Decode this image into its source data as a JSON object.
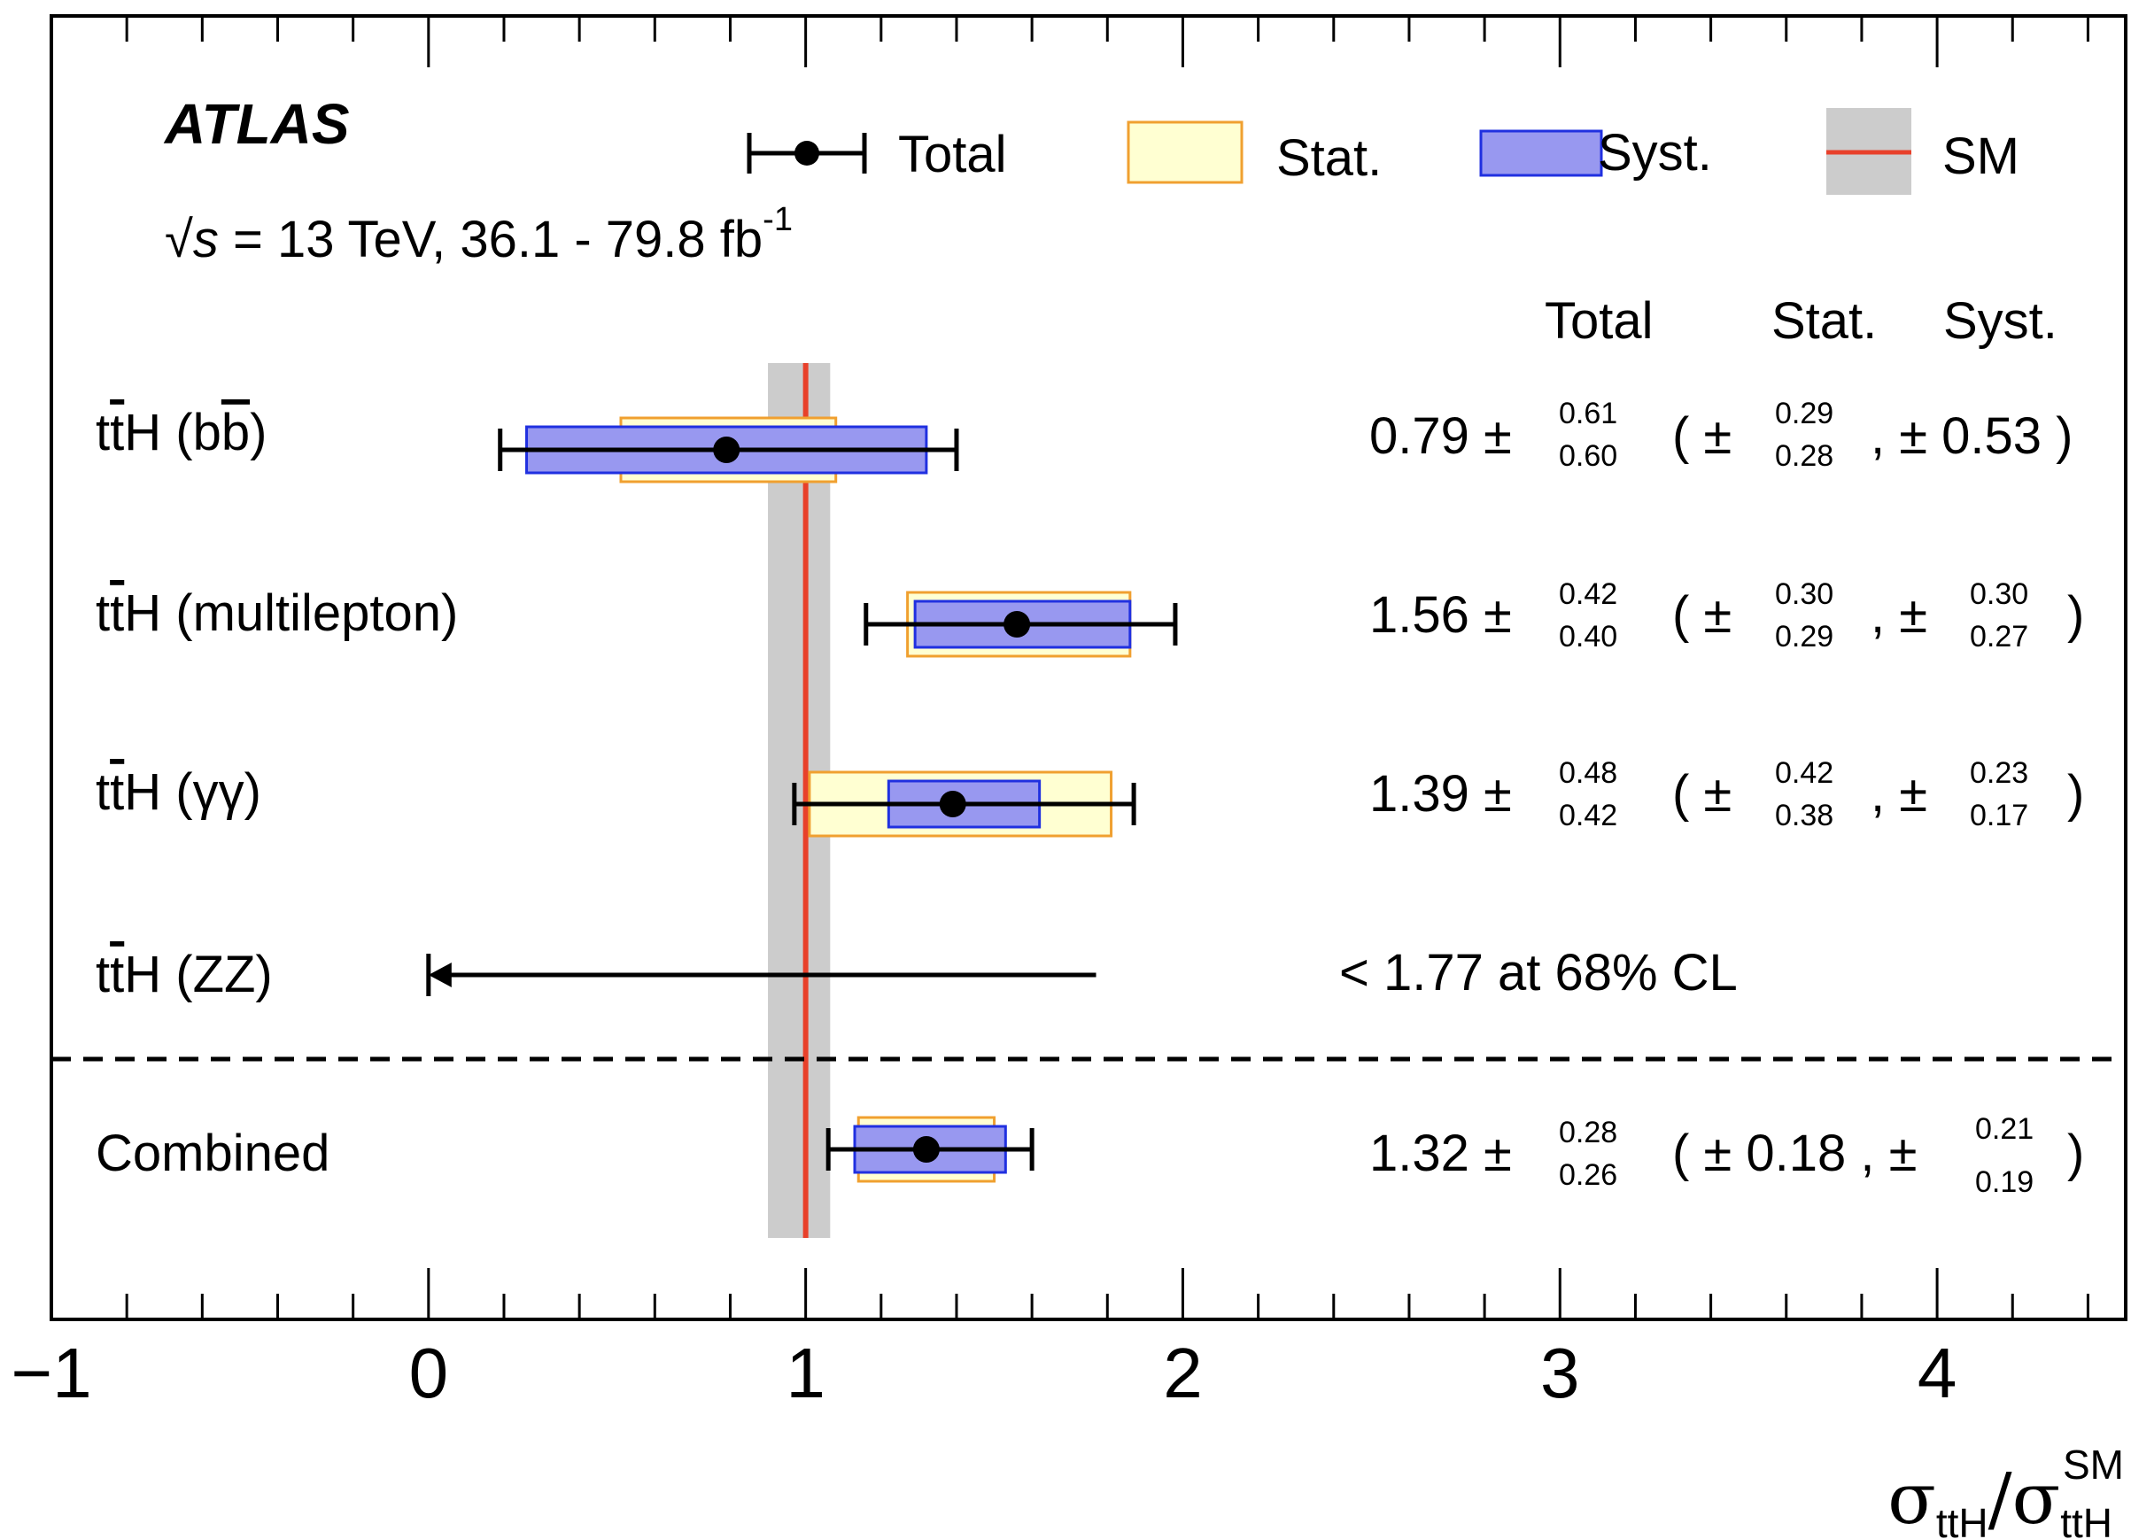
{
  "chart_data": {
    "type": "forest",
    "experiment": "ATLAS",
    "energy_prefix": "√",
    "energy_symbol": "s",
    "energy_text": " = 13 TeV, 36.1 - 79.8 fb",
    "energy_exp": "-1",
    "xlabel": {
      "num": "σ",
      "num_sub": "ttH",
      "slash": "/",
      "den": "σ",
      "den_sup": "SM",
      "den_sub": "ttH"
    },
    "xlim": [
      -1,
      4.5
    ],
    "xticks": [
      "−1",
      "0",
      "1",
      "2",
      "3",
      "4"
    ],
    "xtick_values": [
      -1,
      0,
      1,
      2,
      3,
      4
    ],
    "minor_tick_step": 0.2,
    "sm_value": 1,
    "sm_band": [
      0.9,
      1.065
    ],
    "legend": {
      "placement": "top",
      "total": "Total",
      "stat": "Stat.",
      "syst": "Syst.",
      "sm": "SM"
    },
    "column_headers": {
      "total": "Total",
      "stat": "Stat.",
      "syst": "Syst."
    },
    "measurements": [
      {
        "label_pre": "t",
        "label_bar": "t",
        "label_post": "H (b",
        "label_bar2": "b",
        "label_end": ")",
        "central": 0.79,
        "total_up": 0.61,
        "total_dn": 0.6,
        "stat_up": 0.29,
        "stat_dn": 0.28,
        "syst_up": 0.53,
        "syst_dn": 0.53,
        "text_central": "0.79 ±",
        "text_total_up": "0.61",
        "text_total_dn": "0.60",
        "text_stat_up": "0.29",
        "text_stat_dn": "0.28",
        "text_syst_sym": ", ± 0.53 )"
      },
      {
        "label_pre": "t",
        "label_bar": "t",
        "label_post": "H (multilepton)",
        "central": 1.56,
        "total_up": 0.42,
        "total_dn": 0.4,
        "stat_up": 0.3,
        "stat_dn": 0.29,
        "syst_up": 0.3,
        "syst_dn": 0.27,
        "text_central": "1.56 ±",
        "text_total_up": "0.42",
        "text_total_dn": "0.40",
        "text_stat_up": "0.30",
        "text_stat_dn": "0.29",
        "text_syst_up": "0.30",
        "text_syst_dn": "0.27"
      },
      {
        "label_pre": "t",
        "label_bar": "t",
        "label_post": "H (γγ)",
        "central": 1.39,
        "total_up": 0.48,
        "total_dn": 0.42,
        "stat_up": 0.42,
        "stat_dn": 0.38,
        "syst_up": 0.23,
        "syst_dn": 0.17,
        "text_central": "1.39 ±",
        "text_total_up": "0.48",
        "text_total_dn": "0.42",
        "text_stat_up": "0.42",
        "text_stat_dn": "0.38",
        "text_syst_up": "0.23",
        "text_syst_dn": "0.17"
      },
      {
        "label_pre": "t",
        "label_bar": "t",
        "label_post": "H (ZZ)",
        "upper_limit": 1.77,
        "text_limit": "< 1.77 at 68% CL"
      },
      {
        "label_post": "Combined",
        "central": 1.32,
        "total_up": 0.28,
        "total_dn": 0.26,
        "stat_up": 0.18,
        "stat_dn": 0.18,
        "syst_up": 0.21,
        "syst_dn": 0.19,
        "text_central": "1.32 ±",
        "text_total_up": "0.28",
        "text_total_dn": "0.26",
        "text_stat_sym": "( ± 0.18 , ±",
        "text_syst_up": "0.21",
        "text_syst_dn": "0.19"
      }
    ],
    "colors": {
      "stat_fill": "#FFFFD2",
      "stat_edge": "#F0A030",
      "syst_fill": "#9898F0",
      "syst_edge": "#2030E0",
      "sm_band": "#CCCCCC",
      "sm_line": "#E8402A",
      "marker": "#000000"
    }
  }
}
